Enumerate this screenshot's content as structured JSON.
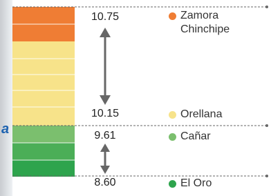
{
  "partial_text": "a",
  "items": [
    {
      "label": "Zamora Chinchipe",
      "value": "10.75"
    },
    {
      "label": "Orellana",
      "value": "10.15"
    },
    {
      "label": "Cañar",
      "value": "9.61"
    },
    {
      "label": "El Oro",
      "value": "8.60"
    }
  ]
}
